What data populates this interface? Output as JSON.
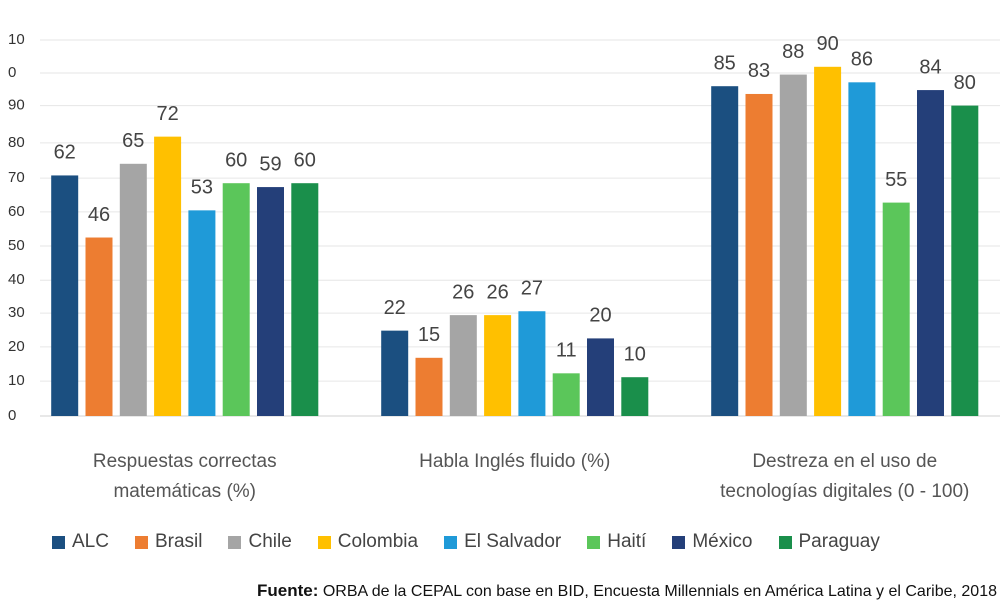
{
  "chart_data": {
    "type": "bar",
    "categories": [
      "Respuestas correctas matemáticas (%)",
      "Habla Inglés fluido (%)",
      "Destreza en el uso de tecnologías digitales (0 - 100)"
    ],
    "series": [
      {
        "name": "ALC",
        "color": "#1b4f80",
        "values": [
          62,
          22,
          85
        ]
      },
      {
        "name": "Brasil",
        "color": "#ed7d31",
        "values": [
          46,
          15,
          83
        ]
      },
      {
        "name": "Chile",
        "color": "#a5a5a5",
        "values": [
          65,
          26,
          88
        ]
      },
      {
        "name": "Colombia",
        "color": "#ffc000",
        "values": [
          72,
          26,
          90
        ]
      },
      {
        "name": "El Salvador",
        "color": "#1f9ad8",
        "values": [
          53,
          27,
          86
        ]
      },
      {
        "name": "Haití",
        "color": "#5bc65a",
        "values": [
          60,
          11,
          55
        ]
      },
      {
        "name": "México",
        "color": "#243f79",
        "values": [
          59,
          20,
          84
        ]
      },
      {
        "name": "Paraguay",
        "color": "#1a8f4b",
        "values": [
          60,
          10,
          80
        ]
      }
    ],
    "ylim": [
      0,
      100
    ],
    "yticks": [
      0,
      {
        "value": 9,
        "label": "10"
      },
      {
        "value": 17.8,
        "label": "20"
      },
      {
        "value": 26.5,
        "label": "30"
      },
      {
        "value": 35,
        "label": "40"
      },
      {
        "value": 43.8,
        "label": "50"
      },
      {
        "value": 52.6,
        "label": "60"
      },
      {
        "value": 61.3,
        "label": "70"
      },
      {
        "value": 70.4,
        "label": "80"
      },
      {
        "value": 80,
        "label": "90"
      },
      {
        "value": 88.4,
        "label": "0"
      },
      {
        "value": 96.9,
        "label": "10"
      }
    ],
    "grid": true,
    "legend": "bottom",
    "source": {
      "label": "Fuente:",
      "text": "ORBA de la CEPAL con base en BID, Encuesta Millennials en América Latina y el Caribe, 2018"
    }
  }
}
